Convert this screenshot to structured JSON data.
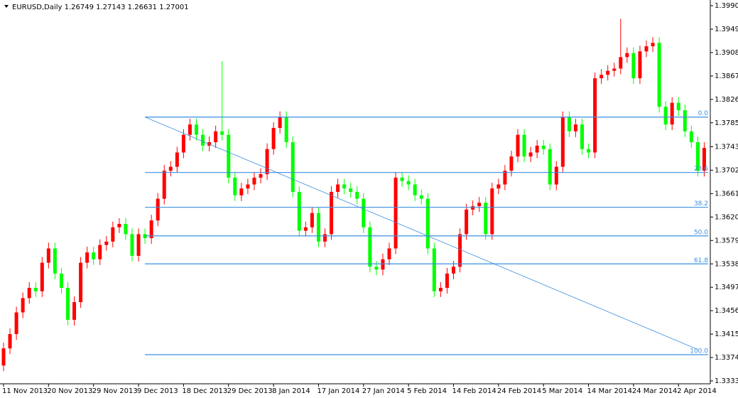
{
  "chart_data": {
    "type": "candlestick",
    "title": "EURUSD,Daily  1.26749 1.27143 1.26631 1.27001",
    "categories": [
      "11 Nov 2013",
      null,
      null,
      null,
      null,
      null,
      null,
      "20 Nov 2013",
      null,
      null,
      null,
      null,
      null,
      null,
      "29 Nov 2013",
      null,
      null,
      null,
      null,
      null,
      null,
      "9 Dec 2013",
      null,
      null,
      null,
      null,
      null,
      null,
      "18 Dec 2013",
      null,
      null,
      null,
      null,
      null,
      null,
      "29 Dec 2013",
      null,
      null,
      null,
      null,
      null,
      null,
      "8 Jan 2014",
      null,
      null,
      null,
      null,
      null,
      null,
      "17 Jan 2014",
      null,
      null,
      null,
      null,
      null,
      null,
      "27 Jan 2014",
      null,
      null,
      null,
      null,
      null,
      null,
      "5 Feb 2014",
      null,
      null,
      null,
      null,
      null,
      null,
      "14 Feb 2014",
      null,
      null,
      null,
      null,
      null,
      null,
      "24 Feb 2014",
      null,
      null,
      null,
      null,
      null,
      null,
      "5 Mar 2014",
      null,
      null,
      null,
      null,
      null,
      null,
      "14 Mar 2014",
      null,
      null,
      null,
      null,
      null,
      null,
      "24 Mar 2014",
      null,
      null,
      null,
      null,
      null,
      null,
      "2 Apr 2014",
      null,
      null,
      null,
      null
    ],
    "open": [
      1.336,
      1.339,
      1.3415,
      1.3453,
      1.3478,
      1.3496,
      1.349,
      1.354,
      1.3565,
      1.3521,
      1.3496,
      1.344,
      1.3471,
      1.354,
      1.3558,
      1.3546,
      1.3571,
      1.3577,
      1.3602,
      1.3608,
      1.359,
      1.3552,
      1.359,
      1.3583,
      1.3614,
      1.3652,
      1.3701,
      1.3708,
      1.3733,
      1.3764,
      1.3782,
      1.3764,
      1.3745,
      1.3751,
      1.377,
      1.3764,
      1.3689,
      1.3658,
      1.367,
      1.3677,
      1.3689,
      1.3695,
      1.3739,
      1.3776,
      1.3795,
      1.3751,
      1.3664,
      1.3596,
      1.3602,
      1.3627,
      1.3577,
      1.359,
      1.3664,
      1.3677,
      1.367,
      1.3664,
      1.3652,
      1.3602,
      1.3533,
      1.3528,
      1.3546,
      1.3565,
      1.3689,
      1.3683,
      1.3677,
      1.3658,
      1.3652,
      1.3565,
      1.349,
      1.3496,
      1.3521,
      1.3533,
      1.359,
      1.3633,
      1.3639,
      1.3645,
      1.359,
      1.367,
      1.3677,
      1.3701,
      1.3726,
      1.3764,
      1.3726,
      1.3733,
      1.3745,
      1.3739,
      1.3677,
      1.3708,
      1.3795,
      1.377,
      1.3782,
      1.3739,
      1.3733,
      1.3863,
      1.3869,
      1.3876,
      1.388,
      1.39,
      1.3907,
      1.3863,
      1.391,
      1.3919,
      1.3925,
      1.3813,
      1.3782,
      1.382,
      1.3807,
      1.377,
      1.3751,
      1.3701
    ],
    "high": [
      1.34,
      1.3425,
      1.3463,
      1.3488,
      1.3506,
      1.3506,
      1.355,
      1.3575,
      1.3575,
      1.3531,
      1.3506,
      1.3481,
      1.355,
      1.3568,
      1.3568,
      1.3581,
      1.3587,
      1.3612,
      1.3618,
      1.3618,
      1.36,
      1.36,
      1.36,
      1.3624,
      1.3662,
      1.3711,
      1.3718,
      1.3743,
      1.3774,
      1.3792,
      1.3792,
      1.3774,
      1.3761,
      1.378,
      1.3893,
      1.3774,
      1.3699,
      1.368,
      1.3687,
      1.3699,
      1.3705,
      1.3749,
      1.3786,
      1.3805,
      1.3805,
      1.3761,
      1.3674,
      1.3612,
      1.3637,
      1.3637,
      1.36,
      1.3674,
      1.3687,
      1.3687,
      1.368,
      1.3674,
      1.3662,
      1.3612,
      1.3543,
      1.3556,
      1.3575,
      1.3699,
      1.3699,
      1.3693,
      1.3687,
      1.3668,
      1.3662,
      1.3575,
      1.3506,
      1.3531,
      1.3543,
      1.36,
      1.3643,
      1.3649,
      1.3655,
      1.3655,
      1.368,
      1.3687,
      1.3711,
      1.3736,
      1.3774,
      1.3774,
      1.3743,
      1.3755,
      1.3755,
      1.3749,
      1.3718,
      1.3805,
      1.3805,
      1.3792,
      1.3792,
      1.3749,
      1.3873,
      1.3879,
      1.3886,
      1.389,
      1.3967,
      1.3917,
      1.3917,
      1.392,
      1.3929,
      1.3935,
      1.3935,
      1.3823,
      1.383,
      1.383,
      1.3817,
      1.378,
      1.3761,
      1.3751
    ],
    "low": [
      1.335,
      1.338,
      1.3405,
      1.3443,
      1.3468,
      1.348,
      1.348,
      1.353,
      1.3511,
      1.3486,
      1.343,
      1.343,
      1.3461,
      1.353,
      1.3536,
      1.3536,
      1.3561,
      1.3567,
      1.3592,
      1.358,
      1.3542,
      1.3542,
      1.3573,
      1.3573,
      1.3604,
      1.3642,
      1.3691,
      1.3698,
      1.3723,
      1.3754,
      1.3754,
      1.3735,
      1.3735,
      1.3741,
      1.3754,
      1.3679,
      1.3648,
      1.3648,
      1.366,
      1.3667,
      1.3679,
      1.3685,
      1.3729,
      1.3766,
      1.3741,
      1.3654,
      1.3586,
      1.3586,
      1.3592,
      1.3567,
      1.3567,
      1.358,
      1.3654,
      1.366,
      1.3654,
      1.3642,
      1.3592,
      1.3523,
      1.3518,
      1.3518,
      1.3536,
      1.3555,
      1.3673,
      1.3667,
      1.3648,
      1.3642,
      1.3555,
      1.348,
      1.348,
      1.3486,
      1.3511,
      1.3523,
      1.358,
      1.3623,
      1.3629,
      1.358,
      1.358,
      1.366,
      1.3667,
      1.3691,
      1.3716,
      1.3716,
      1.3716,
      1.3723,
      1.3729,
      1.3667,
      1.3667,
      1.3698,
      1.376,
      1.376,
      1.3729,
      1.3723,
      1.3723,
      1.3853,
      1.3859,
      1.3866,
      1.387,
      1.389,
      1.3853,
      1.3853,
      1.39,
      1.3909,
      1.3803,
      1.3772,
      1.3772,
      1.3797,
      1.376,
      1.3741,
      1.3691,
      1.3691
    ],
    "close": [
      1.339,
      1.3415,
      1.3453,
      1.3478,
      1.3496,
      1.349,
      1.354,
      1.3565,
      1.3521,
      1.3496,
      1.344,
      1.3471,
      1.354,
      1.3558,
      1.3546,
      1.3571,
      1.3577,
      1.3602,
      1.3608,
      1.359,
      1.3552,
      1.359,
      1.3583,
      1.3614,
      1.3652,
      1.3701,
      1.3708,
      1.3733,
      1.3764,
      1.3782,
      1.3764,
      1.3745,
      1.3751,
      1.377,
      1.3764,
      1.3689,
      1.3658,
      1.367,
      1.3677,
      1.3689,
      1.3695,
      1.3739,
      1.3776,
      1.3795,
      1.3751,
      1.3664,
      1.3596,
      1.3602,
      1.3627,
      1.3577,
      1.359,
      1.3664,
      1.3677,
      1.367,
      1.3664,
      1.3652,
      1.3602,
      1.3533,
      1.3528,
      1.3546,
      1.3565,
      1.3689,
      1.3683,
      1.3677,
      1.3658,
      1.3652,
      1.3565,
      1.349,
      1.3496,
      1.3521,
      1.3533,
      1.359,
      1.3633,
      1.3639,
      1.3645,
      1.359,
      1.367,
      1.3677,
      1.3701,
      1.3726,
      1.3764,
      1.3726,
      1.3733,
      1.3745,
      1.3739,
      1.3677,
      1.3708,
      1.3795,
      1.377,
      1.3782,
      1.3739,
      1.3733,
      1.3863,
      1.3869,
      1.3876,
      1.388,
      1.39,
      1.3907,
      1.3863,
      1.391,
      1.3919,
      1.3925,
      1.3813,
      1.3782,
      1.382,
      1.3807,
      1.377,
      1.3751,
      1.3701,
      1.3741
    ],
    "up_color": "#ff0000",
    "down_color": "#00ff00",
    "ylim": [
      1.3328,
      1.4
    ],
    "yticks": [
      {
        "value": 1.399,
        "label": "1.39900"
      },
      {
        "value": 1.3949,
        "label": "1.39490"
      },
      {
        "value": 1.3908,
        "label": "1.39080"
      },
      {
        "value": 1.3867,
        "label": "1.38670"
      },
      {
        "value": 1.3826,
        "label": "1.38260"
      },
      {
        "value": 1.3785,
        "label": "1.37850"
      },
      {
        "value": 1.3743,
        "label": "1.37430"
      },
      {
        "value": 1.3702,
        "label": "1.37020"
      },
      {
        "value": 1.3661,
        "label": "1.36610"
      },
      {
        "value": 1.362,
        "label": "1.36200"
      },
      {
        "value": 1.3579,
        "label": "1.35790"
      },
      {
        "value": 1.3538,
        "label": "1.35380"
      },
      {
        "value": 1.3497,
        "label": "1.34970"
      },
      {
        "value": 1.3456,
        "label": "1.34560"
      },
      {
        "value": 1.3415,
        "label": "1.34150"
      },
      {
        "value": 1.3374,
        "label": "1.33740"
      },
      {
        "value": 1.3333,
        "label": "1.33330"
      }
    ],
    "fibonacci": {
      "color": "#3a8fe0",
      "levels": [
        {
          "label": "0.0",
          "price": 1.3795
        },
        {
          "label": "23.6",
          "price": 1.3698
        },
        {
          "label": "38.2",
          "price": 1.3637
        },
        {
          "label": "50.0",
          "price": 1.3587
        },
        {
          "label": "61.8",
          "price": 1.3538
        },
        {
          "label": "100.0",
          "price": 1.3379
        }
      ]
    },
    "trendline": {
      "color": "#3a8fe0",
      "from": {
        "index": 22,
        "price": 1.3795
      },
      "to": {
        "index": 108,
        "price": 1.3388
      }
    }
  }
}
